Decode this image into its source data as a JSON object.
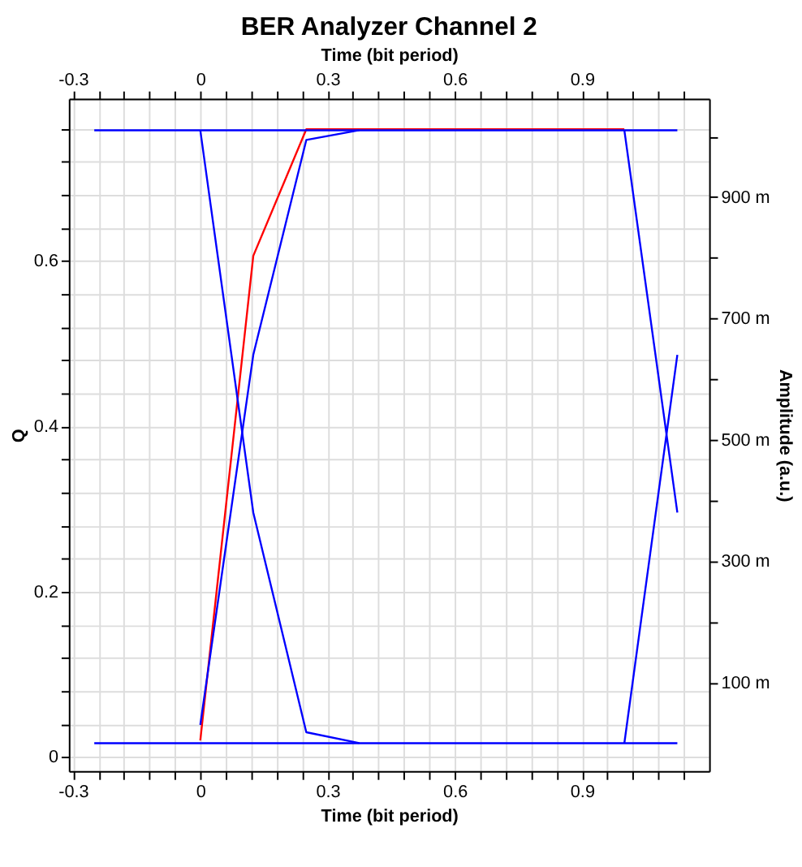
{
  "chart_data": {
    "type": "line",
    "title": "BER Analyzer Channel 2",
    "xlabel": "Time (bit period)",
    "x2label": "Time (bit period)",
    "ylabel": "Q",
    "y2label": "Amplitude (a.u.)",
    "xlim": [
      -0.31,
      1.2
    ],
    "x2lim": [
      -0.31,
      1.2
    ],
    "xticks": [
      -0.3,
      {
        "value": -0.24,
        "label": null
      },
      {
        "value": -0.18,
        "label": null
      },
      {
        "value": -0.12,
        "label": null
      },
      {
        "value": -0.06,
        "label": null
      },
      0,
      {
        "value": 0.06,
        "label": null
      },
      {
        "value": 0.12,
        "label": null
      },
      {
        "value": 0.18,
        "label": null
      },
      {
        "value": 0.24,
        "label": null
      },
      0.3,
      {
        "value": 0.36,
        "label": null
      },
      {
        "value": 0.42,
        "label": null
      },
      {
        "value": 0.48,
        "label": null
      },
      {
        "value": 0.54,
        "label": null
      },
      0.6,
      {
        "value": 0.66,
        "label": null
      },
      {
        "value": 0.72,
        "label": null
      },
      {
        "value": 0.78,
        "label": null
      },
      {
        "value": 0.84,
        "label": null
      },
      0.9,
      {
        "value": 0.96,
        "label": null
      },
      {
        "value": 1.02,
        "label": null
      },
      {
        "value": 1.08,
        "label": null
      },
      {
        "value": 1.14,
        "label": null
      }
    ],
    "x2ticks": [
      -0.3,
      {
        "value": -0.24,
        "label": null
      },
      {
        "value": -0.18,
        "label": null
      },
      {
        "value": -0.12,
        "label": null
      },
      {
        "value": -0.06,
        "label": null
      },
      0,
      {
        "value": 0.06,
        "label": null
      },
      {
        "value": 0.12,
        "label": null
      },
      {
        "value": 0.18,
        "label": null
      },
      {
        "value": 0.24,
        "label": null
      },
      0.3,
      {
        "value": 0.36,
        "label": null
      },
      {
        "value": 0.42,
        "label": null
      },
      {
        "value": 0.48,
        "label": null
      },
      {
        "value": 0.54,
        "label": null
      },
      0.6,
      {
        "value": 0.66,
        "label": null
      },
      {
        "value": 0.72,
        "label": null
      },
      {
        "value": 0.78,
        "label": null
      },
      {
        "value": 0.84,
        "label": null
      },
      0.9,
      {
        "value": 0.96,
        "label": null
      },
      {
        "value": 1.02,
        "label": null
      },
      {
        "value": 1.08,
        "label": null
      },
      {
        "value": 1.14,
        "label": null
      }
    ],
    "ylim": [
      -0.017,
      0.796
    ],
    "yticks": [
      0,
      {
        "value": 0.04,
        "label": null
      },
      {
        "value": 0.08,
        "label": null
      },
      {
        "value": 0.12,
        "label": null
      },
      {
        "value": 0.16,
        "label": null
      },
      0.2,
      {
        "value": 0.24,
        "label": null
      },
      {
        "value": 0.28,
        "label": null
      },
      {
        "value": 0.32,
        "label": null
      },
      {
        "value": 0.36,
        "label": null
      },
      0.4,
      {
        "value": 0.44,
        "label": null
      },
      {
        "value": 0.48,
        "label": null
      },
      {
        "value": 0.52,
        "label": null
      },
      {
        "value": 0.56,
        "label": null
      },
      0.6,
      {
        "value": 0.64,
        "label": null
      },
      {
        "value": 0.68,
        "label": null
      },
      {
        "value": 0.72,
        "label": null
      },
      {
        "value": 0.76,
        "label": null
      }
    ],
    "y2lim": [
      -46,
      1062
    ],
    "y2ticks": [
      {
        "value": 100,
        "label": "100 m"
      },
      {
        "value": 200,
        "label": null
      },
      {
        "value": 300,
        "label": "300 m"
      },
      {
        "value": 400,
        "label": null
      },
      {
        "value": 500,
        "label": "500 m"
      },
      {
        "value": 600,
        "label": null
      },
      {
        "value": 700,
        "label": "700 m"
      },
      {
        "value": 800,
        "label": null
      },
      {
        "value": 900,
        "label": "900 m"
      },
      {
        "value": 1000,
        "label": null
      }
    ],
    "grid": true,
    "marker": "none",
    "line_style": "solid",
    "series": [
      {
        "color": "#ff0000",
        "x": [
          0,
          0.125,
          0.25,
          1.0
        ],
        "values": [
          0.02,
          0.606,
          0.759,
          0.759
        ]
      },
      {
        "color": "#0000ff",
        "axis": "y2",
        "x": [
          -0.25,
          1.125
        ],
        "values": [
          1010,
          1010
        ]
      },
      {
        "color": "#0000ff",
        "axis": "y2",
        "x": [
          -0.25,
          1.125
        ],
        "values": [
          0,
          0
        ]
      },
      {
        "color": "#0000ff",
        "axis": "y2",
        "x": [
          0,
          0.125,
          0.25,
          0.375
        ],
        "values": [
          1010,
          380,
          18,
          0
        ]
      },
      {
        "color": "#0000ff",
        "axis": "y2",
        "x": [
          0,
          0.125,
          0.25,
          0.375
        ],
        "values": [
          30,
          640,
          994,
          1010
        ]
      },
      {
        "color": "#0000ff",
        "axis": "y2",
        "x": [
          1.0,
          1.125
        ],
        "values": [
          1010,
          380
        ]
      },
      {
        "color": "#0000ff",
        "axis": "y2",
        "x": [
          1.0,
          1.125
        ],
        "values": [
          0,
          640
        ]
      }
    ]
  }
}
